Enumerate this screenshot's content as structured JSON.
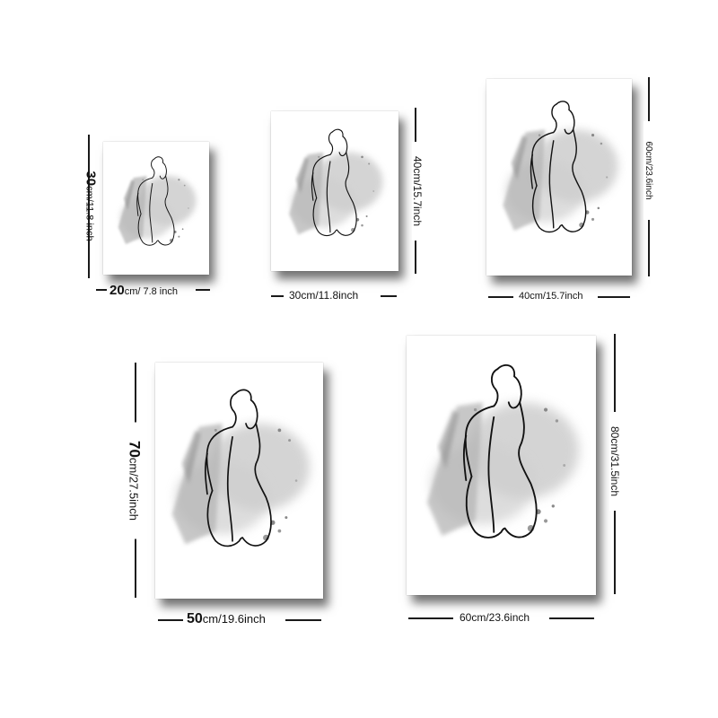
{
  "posters": [
    {
      "name": "small",
      "width_label": {
        "main": "20",
        "rest": "cm/ 7.8 inch"
      },
      "height_label": {
        "main": "30",
        "rest": "cm/11.8 inch"
      }
    },
    {
      "name": "medium",
      "width_label": {
        "main": "",
        "rest": "30cm/11.8inch"
      },
      "height_label": {
        "main": "",
        "rest": "40cm/15.7inch"
      }
    },
    {
      "name": "large",
      "width_label": {
        "main": "",
        "rest": "40cm/15.7inch"
      },
      "height_label": {
        "main": "",
        "rest": "60cm/23.6inch"
      }
    },
    {
      "name": "xlarge",
      "width_label": {
        "main": "50",
        "rest": "cm/19.6inch"
      },
      "height_label": {
        "main": "70",
        "rest": "cm/27.5inch"
      }
    },
    {
      "name": "xxlarge",
      "width_label": {
        "main": "",
        "rest": "60cm/23.6inch"
      },
      "height_label": {
        "main": "",
        "rest": "80cm/31.5inch"
      }
    }
  ],
  "colors": {
    "wash": "#b9b9b9",
    "line": "#111111",
    "shadow": "#555555"
  }
}
